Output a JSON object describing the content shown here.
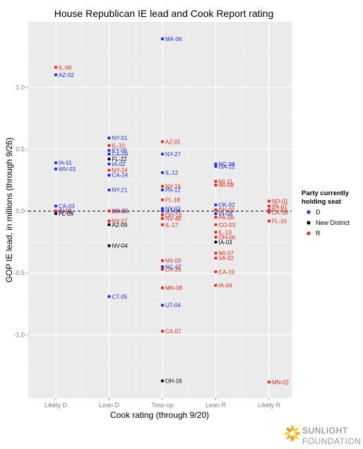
{
  "chart_data": {
    "type": "scatter",
    "title": "House Republican IE lead and Cook Report rating",
    "xlabel": "Cook rating (through 9/20)",
    "ylabel": "GOP IE lead, in millions (through 9/26)",
    "categories": [
      "Likely D",
      "Lean D",
      "Toss-up",
      "Lean R",
      "Likely R"
    ],
    "ylim": [
      -1.5,
      1.55
    ],
    "yticks": [
      -1.0,
      -0.5,
      0.0,
      0.5,
      1.0
    ],
    "ytick_labels": [
      "-1.0",
      "-0.5",
      "0.0",
      "0.5",
      "1.0"
    ],
    "grid": true,
    "reference_line": {
      "y": 0,
      "style": "dashed"
    },
    "legend": {
      "title_line1": "Party currently",
      "title_line2": "holding seat",
      "placement": "right",
      "entries": [
        {
          "key": "D",
          "label": "D",
          "color": "#1f2ff0"
        },
        {
          "key": "N",
          "label": "New District",
          "color": "#000000"
        },
        {
          "key": "R",
          "label": "R",
          "color": "#f02a1e"
        }
      ]
    },
    "points": [
      {
        "label": "IL-08",
        "x": "Likely D",
        "y": 1.16,
        "party": "R"
      },
      {
        "label": "AZ-02",
        "x": "Likely D",
        "y": 1.1,
        "party": "D"
      },
      {
        "label": "IA-01",
        "x": "Likely D",
        "y": 0.39,
        "party": "D"
      },
      {
        "label": "WV-03",
        "x": "Likely D",
        "y": 0.34,
        "party": "D"
      },
      {
        "label": "CA-03",
        "x": "Likely D",
        "y": 0.04,
        "party": "D"
      },
      {
        "label": "RI-01",
        "x": "Likely D",
        "y": 0.0,
        "party": "D"
      },
      {
        "label": "IL-10",
        "x": "Likely D",
        "y": 0.0,
        "party": "R"
      },
      {
        "label": "FL-09",
        "x": "Likely D",
        "y": -0.02,
        "party": "N"
      },
      {
        "label": "NY-01",
        "x": "Lean D",
        "y": 0.59,
        "party": "D"
      },
      {
        "label": "IL-10",
        "x": "Lean D",
        "y": 0.53,
        "party": "R"
      },
      {
        "label": "KY-06",
        "x": "Lean D",
        "y": 0.49,
        "party": "D"
      },
      {
        "label": "CA-09",
        "x": "Lean D",
        "y": 0.46,
        "party": "D"
      },
      {
        "label": "FL-22",
        "x": "Lean D",
        "y": 0.42,
        "party": "N"
      },
      {
        "label": "IA-02",
        "x": "Lean D",
        "y": 0.38,
        "party": "D"
      },
      {
        "label": "NY-24",
        "x": "Lean D",
        "y": 0.33,
        "party": "R"
      },
      {
        "label": "CA-24",
        "x": "Lean D",
        "y": 0.29,
        "party": "D"
      },
      {
        "label": "NY-21",
        "x": "Lean D",
        "y": 0.17,
        "party": "D"
      },
      {
        "label": "MA-06",
        "x": "Lean D",
        "y": 0.0,
        "party": "D"
      },
      {
        "label": "WI-07",
        "x": "Lean D",
        "y": 0.0,
        "party": "R"
      },
      {
        "label": "NY-27",
        "x": "Lean D",
        "y": -0.08,
        "party": "R"
      },
      {
        "label": "AZ-09",
        "x": "Lean D",
        "y": -0.11,
        "party": "N"
      },
      {
        "label": "NV-04",
        "x": "Lean D",
        "y": -0.28,
        "party": "N"
      },
      {
        "label": "CT-05",
        "x": "Lean D",
        "y": -0.69,
        "party": "D"
      },
      {
        "label": "MA-06",
        "x": "Toss-up",
        "y": 1.39,
        "party": "D"
      },
      {
        "label": "AZ-01",
        "x": "Toss-up",
        "y": 0.56,
        "party": "R"
      },
      {
        "label": "NY-27",
        "x": "Toss-up",
        "y": 0.46,
        "party": "D"
      },
      {
        "label": "IL-12",
        "x": "Toss-up",
        "y": 0.31,
        "party": "D"
      },
      {
        "label": "NY-19",
        "x": "Toss-up",
        "y": 0.2,
        "party": "R"
      },
      {
        "label": "PA-12",
        "x": "Toss-up",
        "y": 0.17,
        "party": "D"
      },
      {
        "label": "FL-18",
        "x": "Toss-up",
        "y": 0.09,
        "party": "R"
      },
      {
        "label": "NY-02",
        "x": "Toss-up",
        "y": 0.02,
        "party": "D"
      },
      {
        "label": "UT-04",
        "x": "Toss-up",
        "y": 0.0,
        "party": "D"
      },
      {
        "label": "OH-16",
        "x": "Toss-up",
        "y": -0.03,
        "party": "R"
      },
      {
        "label": "NV-48",
        "x": "Toss-up",
        "y": -0.06,
        "party": "R"
      },
      {
        "label": "IL-17",
        "x": "Toss-up",
        "y": -0.11,
        "party": "R"
      },
      {
        "label": "NV-03",
        "x": "Toss-up",
        "y": -0.4,
        "party": "R"
      },
      {
        "label": "NC-07",
        "x": "Toss-up",
        "y": -0.45,
        "party": "D"
      },
      {
        "label": "CA-26",
        "x": "Toss-up",
        "y": -0.47,
        "party": "R"
      },
      {
        "label": "MN-08",
        "x": "Toss-up",
        "y": -0.62,
        "party": "R"
      },
      {
        "label": "UT-04",
        "x": "Toss-up",
        "y": -0.76,
        "party": "D"
      },
      {
        "label": "CA-07",
        "x": "Toss-up",
        "y": -0.97,
        "party": "R"
      },
      {
        "label": "OH-16",
        "x": "Toss-up",
        "y": -1.37,
        "party": "N"
      },
      {
        "label": "NC-08",
        "x": "Lean R",
        "y": 0.38,
        "party": "D"
      },
      {
        "label": "GA-12",
        "x": "Lean R",
        "y": 0.36,
        "party": "D"
      },
      {
        "label": "MI-11",
        "x": "Lean R",
        "y": 0.24,
        "party": "R"
      },
      {
        "label": "WI-08",
        "x": "Lean R",
        "y": 0.21,
        "party": "R"
      },
      {
        "label": "OK-02",
        "x": "Lean R",
        "y": 0.05,
        "party": "D"
      },
      {
        "label": "NH-01",
        "x": "Lean R",
        "y": 0.01,
        "party": "R"
      },
      {
        "label": "IN-08",
        "x": "Lean R",
        "y": -0.02,
        "party": "D"
      },
      {
        "label": "PA-08",
        "x": "Lean R",
        "y": -0.05,
        "party": "R"
      },
      {
        "label": "CO-03",
        "x": "Lean R",
        "y": -0.11,
        "party": "R"
      },
      {
        "label": "IL-13",
        "x": "Lean R",
        "y": -0.17,
        "party": "R"
      },
      {
        "label": "OH-06",
        "x": "Lean R",
        "y": -0.21,
        "party": "R"
      },
      {
        "label": "IA-03",
        "x": "Lean R",
        "y": -0.25,
        "party": "N"
      },
      {
        "label": "WI-07",
        "x": "Lean R",
        "y": -0.34,
        "party": "R"
      },
      {
        "label": "VA-02",
        "x": "Lean R",
        "y": -0.38,
        "party": "R"
      },
      {
        "label": "CA-10",
        "x": "Lean R",
        "y": -0.49,
        "party": "R"
      },
      {
        "label": "IA-04",
        "x": "Lean R",
        "y": -0.6,
        "party": "R"
      },
      {
        "label": "ND-01",
        "x": "Likely R",
        "y": 0.08,
        "party": "R"
      },
      {
        "label": "PA-07",
        "x": "Likely R",
        "y": 0.04,
        "party": "R"
      },
      {
        "label": "NJ-03",
        "x": "Likely R",
        "y": 0.01,
        "party": "R"
      },
      {
        "label": "CA-36",
        "x": "Likely R",
        "y": -0.01,
        "party": "R"
      },
      {
        "label": "FL-10",
        "x": "Likely R",
        "y": -0.08,
        "party": "R"
      },
      {
        "label": "MN-02",
        "x": "Likely R",
        "y": -1.38,
        "party": "R"
      }
    ]
  },
  "logo": {
    "line1": "SUNLIGHT",
    "line2": "FOUNDATION",
    "colors": [
      "#f6a81c",
      "#f7d117",
      "#e98b1b"
    ]
  }
}
